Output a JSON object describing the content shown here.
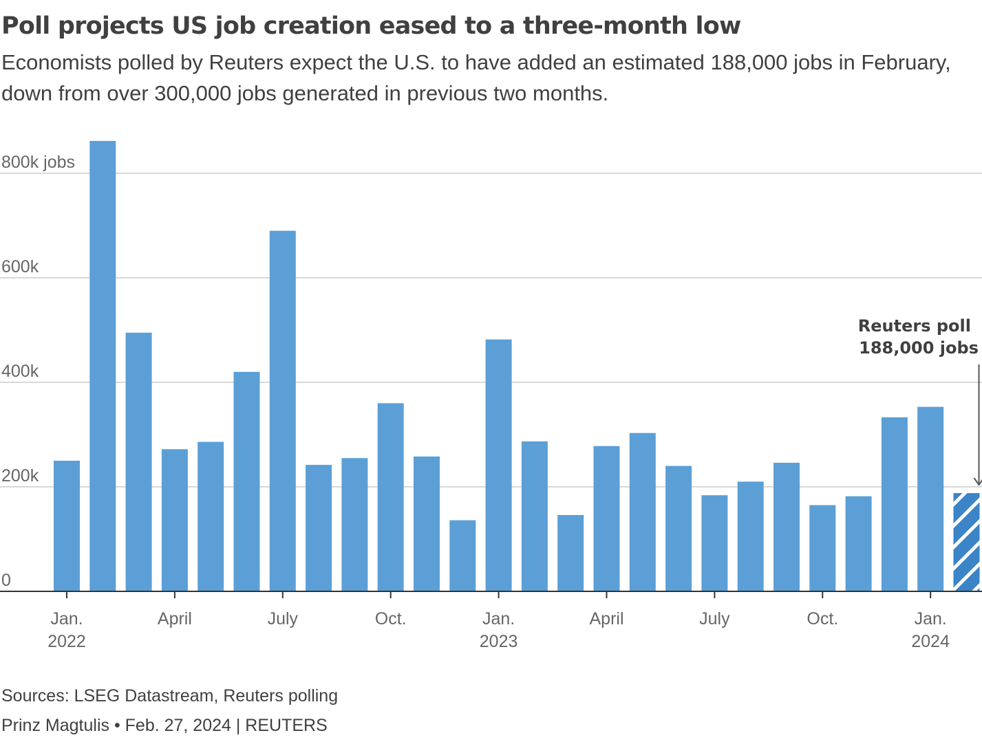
{
  "header": {
    "title": "Poll projects US job creation eased to a three-month low",
    "subtitle": "Economists polled by Reuters expect the U.S. to have added an estimated 188,000 jobs in February, down from over 300,000 jobs generated in previous two months."
  },
  "footer": {
    "sources": "Sources: LSEG Datastream, Reuters polling",
    "credit": "Prinz Magtulis • Feb. 27, 2024 | REUTERS"
  },
  "colors": {
    "bar": "#5b9fd6",
    "poll_bar": "#3b84c7",
    "grid": "#cccccc",
    "axis": "#333333",
    "text": "#404040",
    "tick_text": "#666666"
  },
  "chart_data": {
    "type": "bar",
    "ylim": [
      0,
      860
    ],
    "y_ticks": [
      {
        "value": 0,
        "label": "0"
      },
      {
        "value": 200,
        "label": "200k"
      },
      {
        "value": 400,
        "label": "400k"
      },
      {
        "value": 600,
        "label": "600k"
      },
      {
        "value": 800,
        "label": "800k jobs"
      }
    ],
    "categories": [
      "2022-01",
      "2022-02",
      "2022-03",
      "2022-04",
      "2022-05",
      "2022-06",
      "2022-07",
      "2022-08",
      "2022-09",
      "2022-10",
      "2022-11",
      "2022-12",
      "2023-01",
      "2023-02",
      "2023-03",
      "2023-04",
      "2023-05",
      "2023-06",
      "2023-07",
      "2023-08",
      "2023-09",
      "2023-10",
      "2023-11",
      "2023-12",
      "2024-01",
      "2024-02"
    ],
    "values": [
      250,
      862,
      495,
      272,
      286,
      420,
      690,
      242,
      255,
      360,
      258,
      136,
      482,
      287,
      146,
      278,
      303,
      240,
      184,
      210,
      246,
      165,
      182,
      333,
      353,
      188
    ],
    "units": "thousand jobs",
    "poll_index": 25,
    "x_labels": [
      {
        "index": 0,
        "lines": [
          "Jan.",
          "2022"
        ]
      },
      {
        "index": 3,
        "lines": [
          "April"
        ]
      },
      {
        "index": 6,
        "lines": [
          "July"
        ]
      },
      {
        "index": 9,
        "lines": [
          "Oct."
        ]
      },
      {
        "index": 12,
        "lines": [
          "Jan.",
          "2023"
        ]
      },
      {
        "index": 15,
        "lines": [
          "April"
        ]
      },
      {
        "index": 18,
        "lines": [
          "July"
        ]
      },
      {
        "index": 21,
        "lines": [
          "Oct."
        ]
      },
      {
        "index": 24,
        "lines": [
          "Jan.",
          "2024"
        ]
      }
    ],
    "annotation": {
      "line1": "Reuters poll",
      "line2": "188,000 jobs"
    }
  }
}
